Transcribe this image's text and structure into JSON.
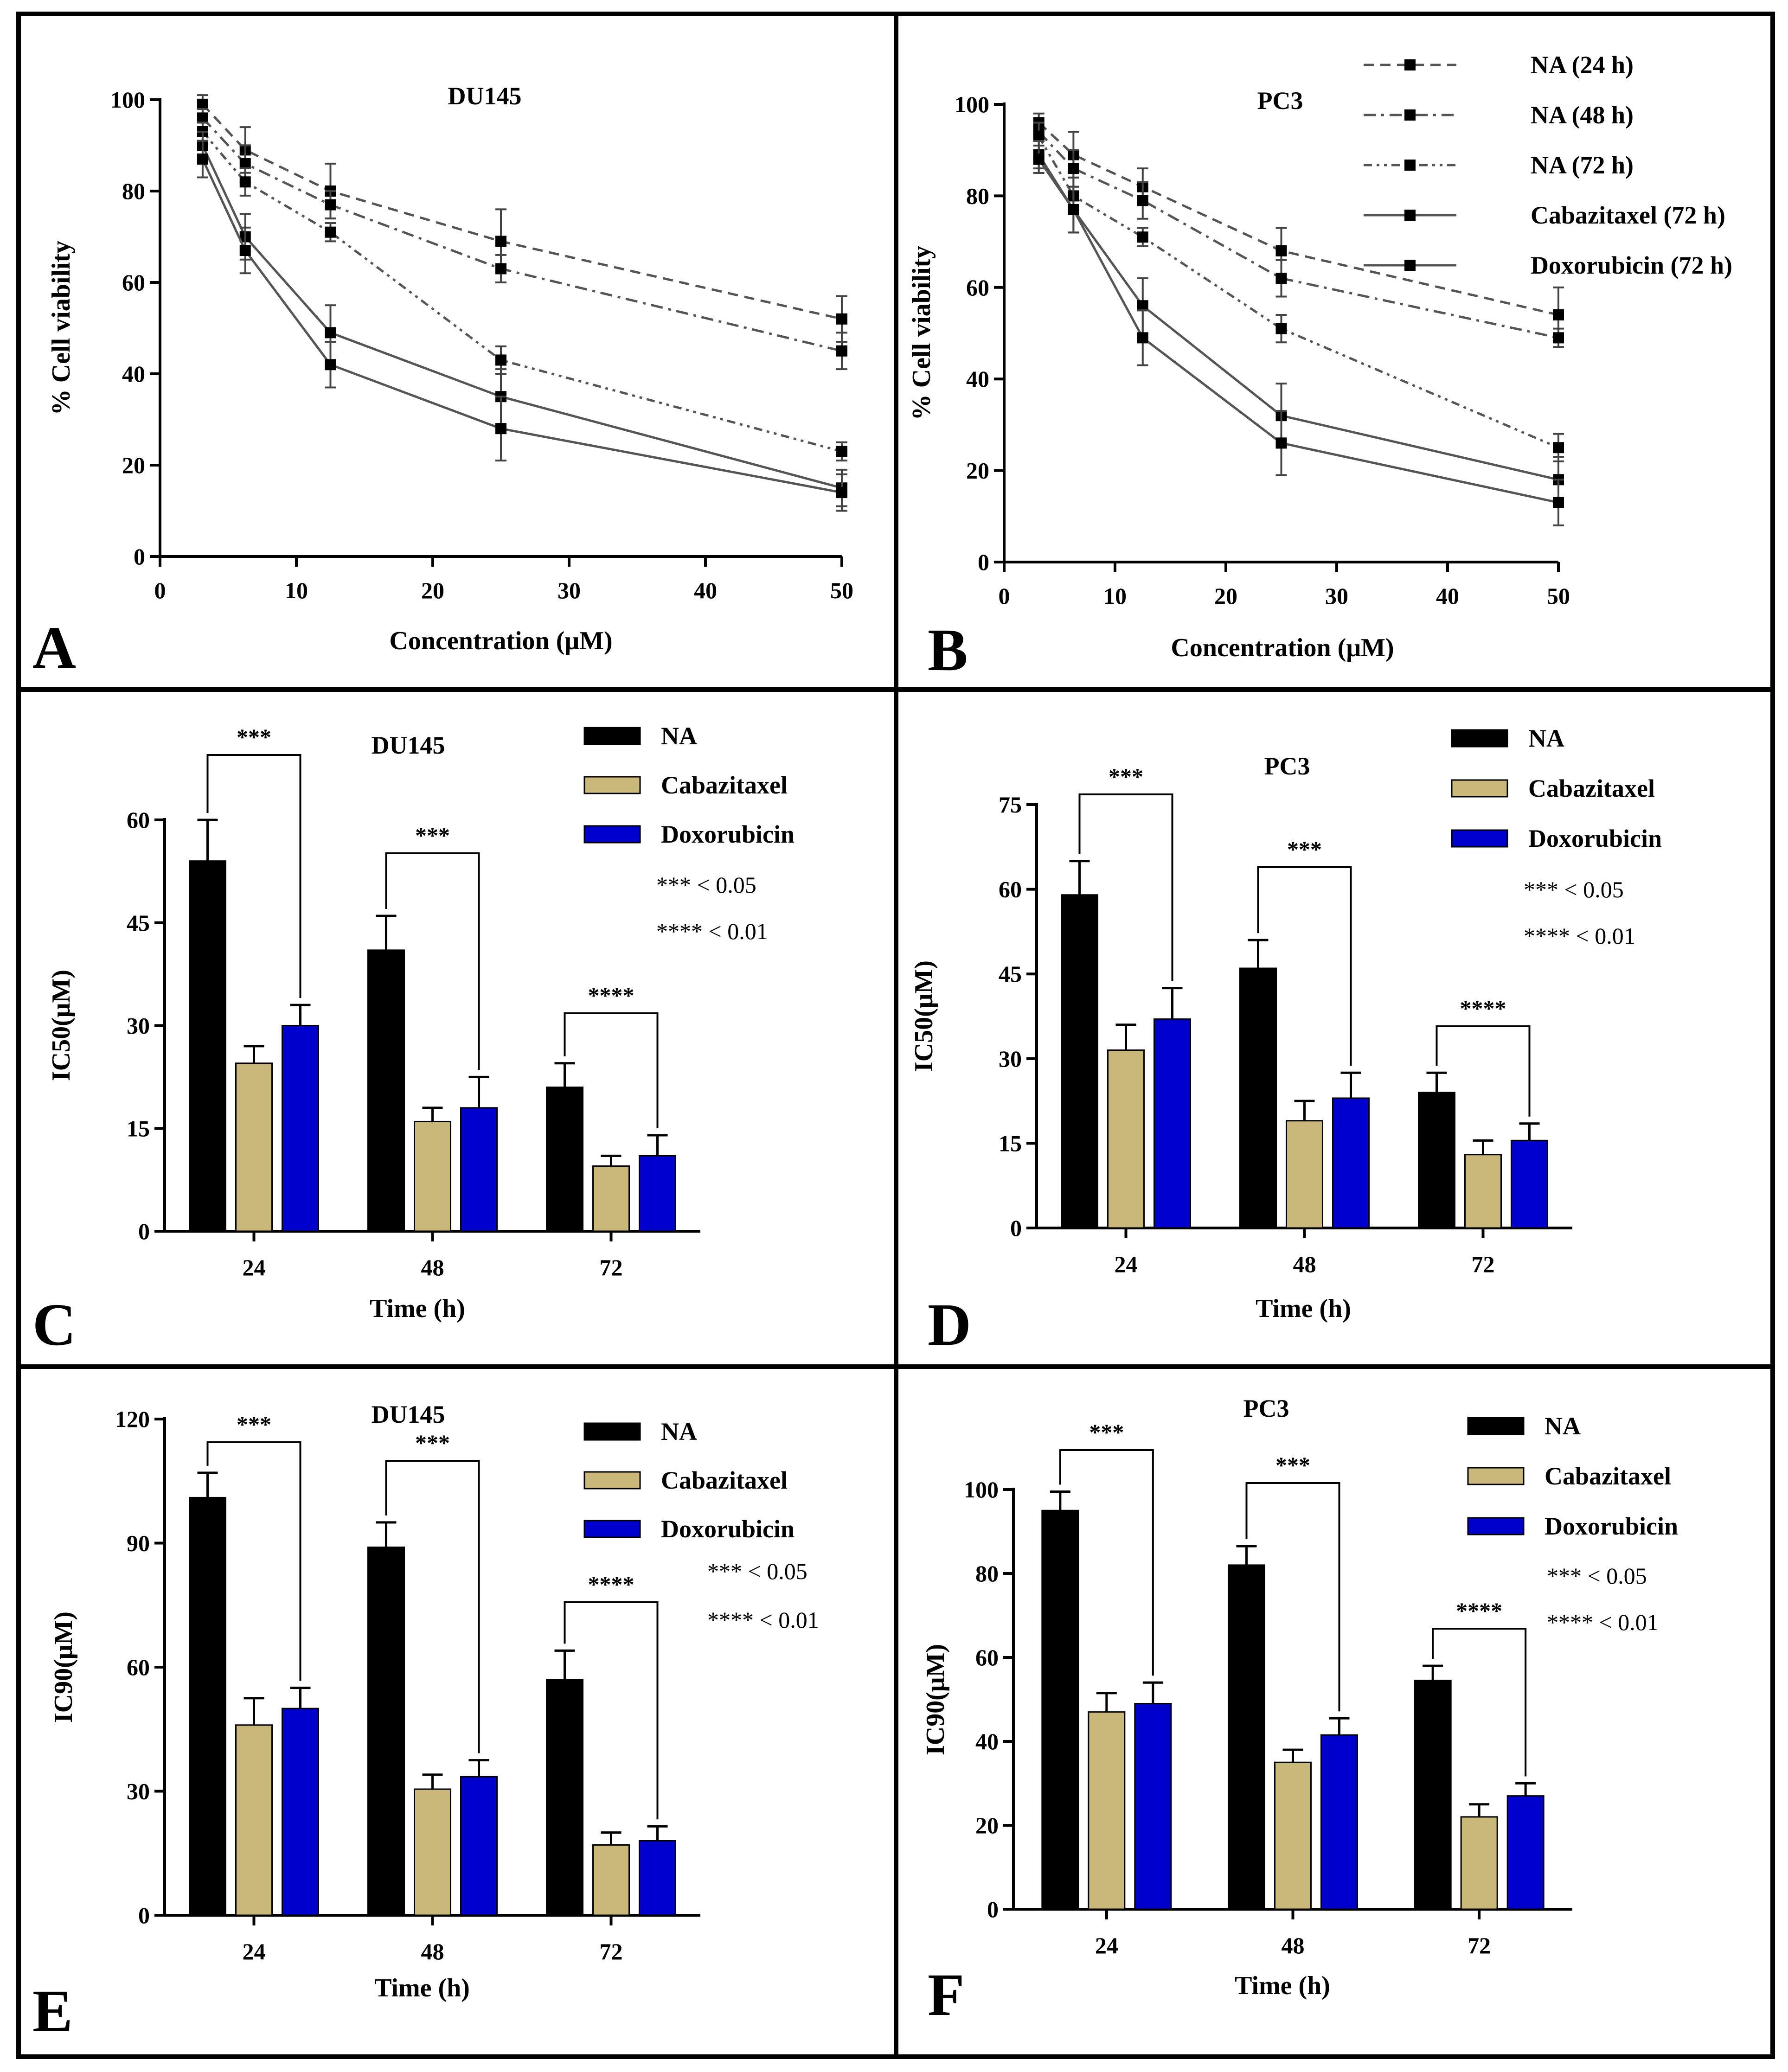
{
  "chart_data": [
    {
      "id": "A",
      "type": "line",
      "title": "DU145",
      "panel_label": "A",
      "xlabel": "Concentration (μM)",
      "ylabel": "% Cell viability",
      "xlim": [
        0,
        50
      ],
      "ylim": [
        0,
        100
      ],
      "xticks": [
        0,
        10,
        20,
        30,
        40,
        50
      ],
      "yticks": [
        0,
        20,
        40,
        60,
        80,
        100
      ],
      "x": [
        3.125,
        6.25,
        12.5,
        25,
        50
      ],
      "series": [
        {
          "name": "NA (24 h)",
          "style": "dash",
          "values": [
            99,
            89,
            80,
            69,
            52
          ],
          "errors": [
            2,
            5,
            6,
            7,
            5
          ]
        },
        {
          "name": "NA (48 h)",
          "style": "dashdot",
          "values": [
            96,
            86,
            77,
            63,
            45
          ],
          "errors": [
            2,
            4,
            3,
            3,
            4
          ]
        },
        {
          "name": "NA (72 h)",
          "style": "dashdot2",
          "values": [
            93,
            82,
            71,
            43,
            23
          ],
          "errors": [
            2,
            3,
            2,
            3,
            2
          ]
        },
        {
          "name": "Cabazitaxel (72 h)",
          "style": "solid",
          "values": [
            90,
            70,
            49,
            35,
            15
          ],
          "errors": [
            3,
            5,
            6,
            6,
            4
          ]
        },
        {
          "name": "Doxorubicin (72 h)",
          "style": "solid",
          "values": [
            87,
            67,
            42,
            28,
            14
          ],
          "errors": [
            4,
            5,
            5,
            7,
            4
          ]
        }
      ]
    },
    {
      "id": "B",
      "type": "line",
      "title": "PC3",
      "panel_label": "B",
      "xlabel": "Concentration (μM)",
      "ylabel": "% Cell viability",
      "xlim": [
        0,
        50
      ],
      "ylim": [
        0,
        100
      ],
      "xticks": [
        0,
        10,
        20,
        30,
        40,
        50
      ],
      "yticks": [
        0,
        20,
        40,
        60,
        80,
        100
      ],
      "x": [
        3.125,
        6.25,
        12.5,
        25,
        50
      ],
      "legend": [
        "NA (24 h)",
        "NA (48 h)",
        "NA (72 h)",
        "Cabazitaxel (72 h)",
        "Doxorubicin (72 h)"
      ],
      "series": [
        {
          "name": "NA (24 h)",
          "style": "dash",
          "values": [
            96,
            89,
            82,
            68,
            54
          ],
          "errors": [
            2,
            5,
            4,
            5,
            6
          ]
        },
        {
          "name": "NA (48 h)",
          "style": "dashdot",
          "values": [
            94,
            86,
            79,
            62,
            49
          ],
          "errors": [
            2,
            4,
            4,
            4,
            2
          ]
        },
        {
          "name": "NA (72 h)",
          "style": "dashdot2",
          "values": [
            93,
            80,
            71,
            51,
            25
          ],
          "errors": [
            3,
            4,
            2,
            3,
            3
          ]
        },
        {
          "name": "Cabazitaxel (72 h)",
          "style": "solid",
          "values": [
            89,
            77,
            56,
            32,
            18
          ],
          "errors": [
            3,
            5,
            6,
            7,
            5
          ]
        },
        {
          "name": "Doxorubicin (72 h)",
          "style": "solid",
          "values": [
            88,
            77,
            49,
            26,
            13
          ],
          "errors": [
            3,
            5,
            6,
            7,
            5
          ]
        }
      ]
    },
    {
      "id": "C",
      "type": "bar",
      "title": "DU145",
      "panel_label": "C",
      "xlabel": "Time (h)",
      "ylabel": "IC50(μM)",
      "ylim": [
        0,
        60
      ],
      "yticks": [
        0,
        15,
        30,
        45,
        60
      ],
      "categories": [
        "24",
        "48",
        "72"
      ],
      "series": [
        {
          "name": "NA",
          "color": "#000000",
          "values": [
            54,
            41,
            21
          ],
          "errors": [
            6,
            5,
            3.5
          ]
        },
        {
          "name": "Cabazitaxel",
          "color": "#c9b87a",
          "values": [
            24.5,
            16,
            9.5
          ],
          "errors": [
            2.5,
            2,
            1.5
          ]
        },
        {
          "name": "Doxorubicin",
          "color": "#0000cc",
          "values": [
            30,
            18,
            11
          ],
          "errors": [
            3,
            4.5,
            3
          ]
        }
      ],
      "significance": [
        "***",
        "***",
        "****"
      ],
      "notes": [
        "*** < 0.05",
        "**** < 0.01"
      ]
    },
    {
      "id": "D",
      "type": "bar",
      "title": "PC3",
      "panel_label": "D",
      "xlabel": "Time (h)",
      "ylabel": "IC50(μM)",
      "ylim": [
        0,
        75
      ],
      "yticks": [
        0,
        15,
        30,
        45,
        60,
        75
      ],
      "categories": [
        "24",
        "48",
        "72"
      ],
      "series": [
        {
          "name": "NA",
          "color": "#000000",
          "values": [
            59,
            46,
            24
          ],
          "errors": [
            6,
            5,
            3.5
          ]
        },
        {
          "name": "Cabazitaxel",
          "color": "#c9b87a",
          "values": [
            31.5,
            19,
            13
          ],
          "errors": [
            4.5,
            3.5,
            2.5
          ]
        },
        {
          "name": "Doxorubicin",
          "color": "#0000cc",
          "values": [
            37,
            23,
            15.5
          ],
          "errors": [
            5.5,
            4.5,
            3
          ]
        }
      ],
      "significance": [
        "***",
        "***",
        "****"
      ],
      "notes": [
        "*** < 0.05",
        "**** < 0.01"
      ]
    },
    {
      "id": "E",
      "type": "bar",
      "title": "DU145",
      "panel_label": "E",
      "xlabel": "Time (h)",
      "ylabel": "IC90(μM)",
      "ylim": [
        0,
        120
      ],
      "yticks": [
        0,
        30,
        60,
        90,
        120
      ],
      "categories": [
        "24",
        "48",
        "72"
      ],
      "series": [
        {
          "name": "NA",
          "color": "#000000",
          "values": [
            101,
            89,
            57
          ],
          "errors": [
            6,
            6,
            7
          ]
        },
        {
          "name": "Cabazitaxel",
          "color": "#c9b87a",
          "values": [
            46,
            30.5,
            17
          ],
          "errors": [
            6.5,
            3.5,
            3
          ]
        },
        {
          "name": "Doxorubicin",
          "color": "#0000cc",
          "values": [
            50,
            33.5,
            18
          ],
          "errors": [
            5,
            4,
            3.5
          ]
        }
      ],
      "significance": [
        "***",
        "***",
        "****"
      ],
      "notes": [
        "*** < 0.05",
        "**** < 0.01"
      ]
    },
    {
      "id": "F",
      "type": "bar",
      "title": "PC3",
      "panel_label": "F",
      "xlabel": "Time (h)",
      "ylabel": "IC90(μM)",
      "ylim": [
        0,
        100
      ],
      "yticks": [
        0,
        20,
        40,
        60,
        80,
        100
      ],
      "categories": [
        "24",
        "48",
        "72"
      ],
      "series": [
        {
          "name": "NA",
          "color": "#000000",
          "values": [
            95,
            82,
            54.5
          ],
          "errors": [
            4.5,
            4.5,
            3.5
          ]
        },
        {
          "name": "Cabazitaxel",
          "color": "#c9b87a",
          "values": [
            47,
            35,
            22
          ],
          "errors": [
            4.5,
            3,
            3
          ]
        },
        {
          "name": "Doxorubicin",
          "color": "#0000cc",
          "values": [
            49,
            41.5,
            27
          ],
          "errors": [
            5,
            4,
            3
          ]
        }
      ],
      "significance": [
        "***",
        "***",
        "****"
      ],
      "notes": [
        "*** < 0.05",
        "**** < 0.01"
      ]
    }
  ]
}
